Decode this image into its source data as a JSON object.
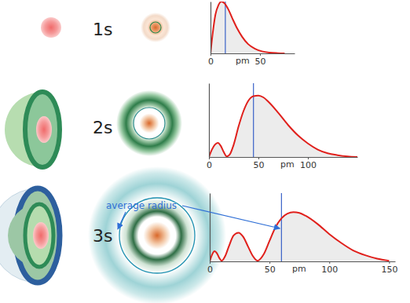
{
  "chart_data": [
    {
      "type": "line",
      "title": "1s",
      "xlabel": "pm",
      "color": "#e0201c",
      "tick_labels": "x",
      "x": [
        0,
        2,
        5,
        8,
        11,
        14,
        18,
        22,
        27,
        32,
        38,
        45,
        52,
        60,
        68,
        75
      ],
      "values": [
        0,
        0.35,
        0.75,
        0.93,
        1.0,
        0.97,
        0.85,
        0.68,
        0.48,
        0.32,
        0.18,
        0.09,
        0.04,
        0.015,
        0.005,
        0
      ],
      "xlim": [
        0,
        85
      ],
      "xticks": [
        0,
        50
      ],
      "ylim": [
        0,
        1
      ],
      "average_radius": 15
    },
    {
      "type": "line",
      "title": "2s",
      "xlabel": "pm",
      "color": "#e0201c",
      "tick_labels": "x",
      "x": [
        0,
        3,
        6,
        9,
        12,
        15,
        18,
        21,
        25,
        30,
        35,
        40,
        45,
        50,
        55,
        60,
        70,
        80,
        90,
        100,
        110,
        120,
        130,
        140,
        150
      ],
      "values": [
        0,
        0.12,
        0.2,
        0.23,
        0.18,
        0.08,
        0.01,
        0.04,
        0.2,
        0.5,
        0.75,
        0.92,
        0.99,
        1.0,
        0.97,
        0.9,
        0.72,
        0.52,
        0.35,
        0.22,
        0.12,
        0.06,
        0.03,
        0.01,
        0
      ],
      "xlim": [
        0,
        150
      ],
      "xticks": [
        0,
        50,
        100
      ],
      "ylim": [
        0,
        1.2
      ],
      "average_radius": 45
    },
    {
      "type": "line",
      "title": "3s",
      "xlabel": "pm",
      "color": "#e0201c",
      "tick_labels": "x",
      "x": [
        0,
        2,
        4,
        6,
        8,
        10,
        13,
        16,
        20,
        24,
        28,
        32,
        36,
        40,
        45,
        50,
        55,
        60,
        65,
        70,
        75,
        80,
        90,
        100,
        110,
        120,
        130,
        140,
        150
      ],
      "values": [
        0,
        0.1,
        0.15,
        0.12,
        0.05,
        0.01,
        0.08,
        0.22,
        0.38,
        0.42,
        0.36,
        0.22,
        0.08,
        0.01,
        0.1,
        0.3,
        0.5,
        0.63,
        0.7,
        0.72,
        0.71,
        0.67,
        0.55,
        0.4,
        0.27,
        0.16,
        0.09,
        0.04,
        0.01
      ],
      "xlim": [
        0,
        155
      ],
      "xticks": [
        0,
        50,
        100,
        150
      ],
      "ylim": [
        0,
        1
      ],
      "average_radius": 60,
      "annotation": "average radius"
    }
  ]
}
